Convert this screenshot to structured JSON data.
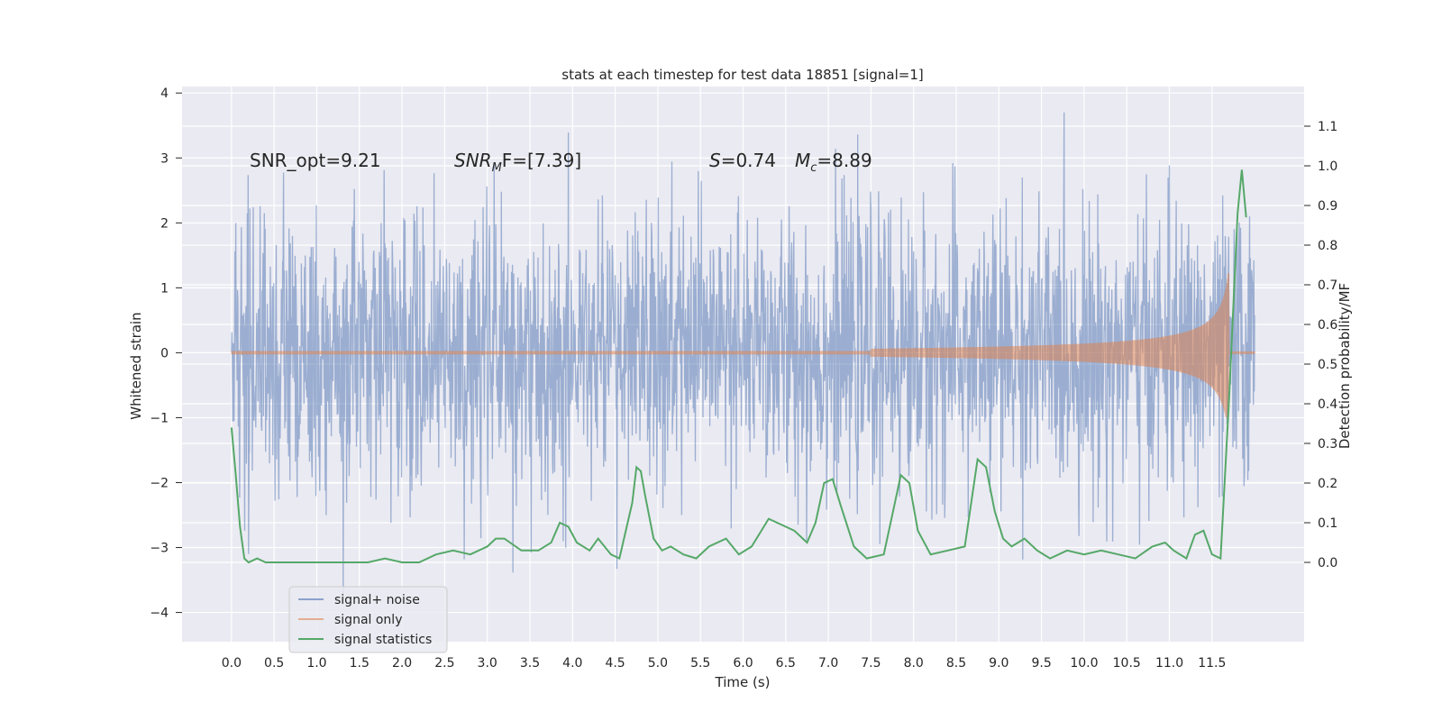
{
  "chart_data": {
    "type": "line",
    "title": "stats at each timestep for test data 18851 [signal=1]",
    "xlabel": "Time (s)",
    "ylabel": "Whitened strain",
    "y2label": "Detection probability/MF",
    "xlim": [
      -0.58,
      12.58
    ],
    "ylim": [
      -4.45,
      4.1
    ],
    "y2lim": [
      -0.2,
      1.2
    ],
    "xticks": [
      0.0,
      0.5,
      1.0,
      1.5,
      2.0,
      2.5,
      3.0,
      3.5,
      4.0,
      4.5,
      5.0,
      5.5,
      6.0,
      6.5,
      7.0,
      7.5,
      8.0,
      8.5,
      9.0,
      9.5,
      10.0,
      10.5,
      11.0,
      11.5
    ],
    "xtick_labels": [
      "0.0",
      "0.5",
      "1.0",
      "1.5",
      "2.0",
      "2.5",
      "3.0",
      "3.5",
      "4.0",
      "4.5",
      "5.0",
      "5.5",
      "6.0",
      "6.5",
      "7.0",
      "7.5",
      "8.0",
      "8.5",
      "9.0",
      "9.5",
      "10.0",
      "10.5",
      "11.0",
      "11.5"
    ],
    "yticks": [
      -4,
      -3,
      -2,
      -1,
      0,
      1,
      2,
      3,
      4
    ],
    "ytick_labels": [
      "−4",
      "−3",
      "−2",
      "−1",
      "0",
      "1",
      "2",
      "3",
      "4"
    ],
    "y2ticks": [
      0.0,
      0.1,
      0.2,
      0.3,
      0.4,
      0.5,
      0.6,
      0.7,
      0.8,
      0.9,
      1.0,
      1.1
    ],
    "y2tick_labels": [
      "0.0",
      "0.1",
      "0.2",
      "0.3",
      "0.4",
      "0.5",
      "0.6",
      "0.7",
      "0.8",
      "0.9",
      "1.0",
      "1.1"
    ],
    "grid": true,
    "legend_position": "lower-left",
    "annotations": {
      "snr_opt": "SNR_opt=9.21",
      "snr_mf_main": "SNR",
      "snr_mf_sub": "M",
      "snr_mf_rest": "F=[7.39]",
      "s_sym": "S",
      "s_val": "=0.74",
      "mc_sym": "M",
      "mc_sub": "c",
      "mc_val": "=8.89"
    },
    "series": [
      {
        "name": "signal+ noise",
        "color": "#4c72b0",
        "axis": "left",
        "x_range": [
          0.0,
          12.0
        ],
        "typical_amplitude": 1.7,
        "peak_max": 3.7,
        "peak_min": -4.1
      },
      {
        "name": "signal only",
        "color": "#dd8452",
        "axis": "left",
        "x_range": [
          0.0,
          12.0
        ],
        "chirp_onset": 7.5,
        "peak_time": 11.7,
        "peak_max": 1.3,
        "peak_min": -1.0
      },
      {
        "name": "signal statistics",
        "color": "#55a868",
        "axis": "right",
        "x": [
          0.0,
          0.05,
          0.1,
          0.15,
          0.2,
          0.3,
          0.4,
          0.5,
          0.6,
          0.8,
          1.0,
          1.2,
          1.4,
          1.6,
          1.8,
          2.0,
          2.2,
          2.4,
          2.6,
          2.8,
          3.0,
          3.1,
          3.2,
          3.4,
          3.6,
          3.75,
          3.85,
          3.95,
          4.05,
          4.2,
          4.3,
          4.45,
          4.55,
          4.7,
          4.75,
          4.8,
          4.85,
          4.95,
          5.05,
          5.15,
          5.3,
          5.45,
          5.6,
          5.8,
          5.95,
          6.1,
          6.3,
          6.4,
          6.5,
          6.6,
          6.75,
          6.85,
          6.95,
          7.05,
          7.15,
          7.3,
          7.45,
          7.65,
          7.75,
          7.85,
          7.95,
          8.05,
          8.2,
          8.4,
          8.6,
          8.75,
          8.85,
          8.95,
          9.05,
          9.15,
          9.3,
          9.45,
          9.6,
          9.8,
          10.0,
          10.2,
          10.4,
          10.6,
          10.8,
          10.95,
          11.05,
          11.2,
          11.3,
          11.4,
          11.5,
          11.6,
          11.7,
          11.8,
          11.85,
          11.9
        ],
        "y": [
          0.34,
          0.22,
          0.09,
          0.01,
          0.0,
          0.01,
          0.0,
          0.0,
          0.0,
          0.0,
          0.0,
          0.0,
          0.0,
          0.0,
          0.01,
          0.0,
          0.0,
          0.02,
          0.03,
          0.02,
          0.04,
          0.06,
          0.06,
          0.03,
          0.03,
          0.05,
          0.1,
          0.09,
          0.05,
          0.03,
          0.06,
          0.02,
          0.01,
          0.15,
          0.24,
          0.23,
          0.17,
          0.06,
          0.03,
          0.04,
          0.02,
          0.01,
          0.04,
          0.06,
          0.02,
          0.04,
          0.11,
          0.1,
          0.09,
          0.08,
          0.05,
          0.1,
          0.2,
          0.21,
          0.14,
          0.04,
          0.01,
          0.02,
          0.12,
          0.22,
          0.2,
          0.08,
          0.02,
          0.03,
          0.04,
          0.26,
          0.24,
          0.13,
          0.06,
          0.04,
          0.06,
          0.03,
          0.01,
          0.03,
          0.02,
          0.03,
          0.02,
          0.01,
          0.04,
          0.05,
          0.03,
          0.01,
          0.07,
          0.08,
          0.02,
          0.01,
          0.41,
          0.88,
          0.99,
          0.87
        ]
      }
    ]
  }
}
